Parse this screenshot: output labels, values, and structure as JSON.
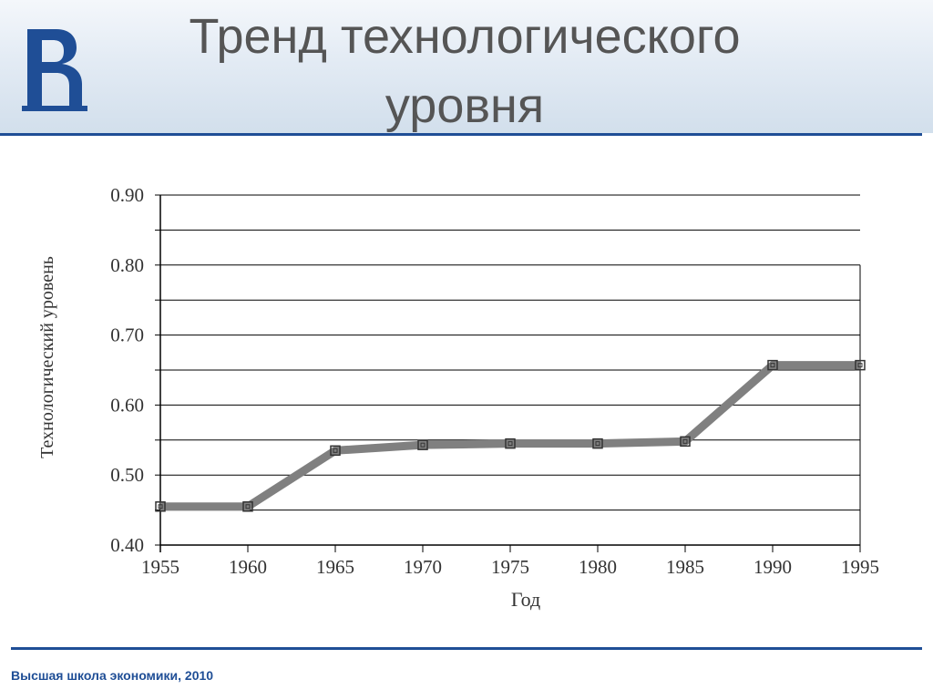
{
  "slide": {
    "title_line1": "Тренд технологического",
    "title_line2": "уровня",
    "footer": "Высшая школа экономики, 2010"
  },
  "colors": {
    "accent": "#1f4e96",
    "series": "#808080",
    "grid": "#000000"
  },
  "icons": {
    "logo": "hse-logo-icon"
  },
  "chart_data": {
    "type": "line",
    "title": "",
    "xlabel": "Год",
    "ylabel": "Технологический уровень",
    "xlim": [
      1955,
      1995
    ],
    "ylim": [
      0.4,
      0.9
    ],
    "grid": true,
    "x_ticks": [
      1955,
      1960,
      1965,
      1970,
      1975,
      1980,
      1985,
      1990,
      1995
    ],
    "x_tick_labels": [
      "1955",
      "1960",
      "1965",
      "1970",
      "1975",
      "1980",
      "1985",
      "1990",
      "1995"
    ],
    "y_ticks": [
      0.4,
      0.5,
      0.6,
      0.7,
      0.8,
      0.9
    ],
    "y_tick_labels": [
      "0.40",
      "0.50",
      "0.60",
      "0.70",
      "0.80",
      "0.90"
    ],
    "series": [
      {
        "x": [
          1955,
          1960,
          1965,
          1970,
          1975,
          1980,
          1985,
          1990,
          1995
        ],
        "values": [
          0.455,
          0.455,
          0.535,
          0.543,
          0.545,
          0.545,
          0.548,
          0.657,
          0.657
        ]
      }
    ]
  }
}
